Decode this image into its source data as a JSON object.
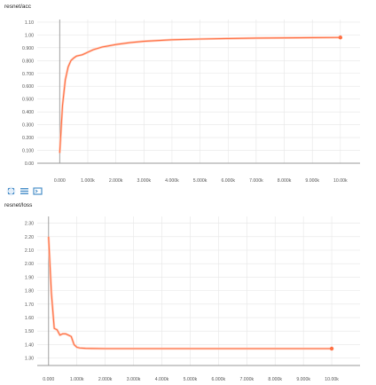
{
  "colors": {
    "series": "#ff7043",
    "series_smooth_bg": "#ffccbc",
    "grid": "#e6e6e6",
    "axis": "#999999",
    "tick_text": "#555555",
    "toolbar_icon": "#4a8fc9"
  },
  "toolbar": {
    "icons": [
      "fit-domain-icon",
      "toggle-y-log-icon",
      "expand-chart-icon"
    ]
  },
  "chart_data": [
    {
      "type": "line",
      "title": "resnet/acc",
      "xlabel": "",
      "ylabel": "",
      "xlim": [
        -800,
        10700
      ],
      "ylim": [
        0,
        1.12
      ],
      "x_ticks": [
        0,
        1000,
        2000,
        3000,
        4000,
        5000,
        6000,
        7000,
        8000,
        9000,
        10000
      ],
      "x_tick_labels": [
        "0.000",
        "1.000k",
        "2.000k",
        "3.000k",
        "4.000k",
        "5.000k",
        "6.000k",
        "7.000k",
        "8.000k",
        "9.000k",
        "10.00k"
      ],
      "y_ticks": [
        0,
        0.1,
        0.2,
        0.3,
        0.4,
        0.5,
        0.6,
        0.7,
        0.8,
        0.9,
        1.0,
        1.1
      ],
      "y_tick_labels": [
        "0.00",
        "0.100",
        "0.200",
        "0.300",
        "0.400",
        "0.500",
        "0.600",
        "0.700",
        "0.800",
        "0.900",
        "1.00",
        "1.10"
      ],
      "grid": true,
      "series": [
        {
          "x": [
            0,
            100,
            200,
            300,
            400,
            500,
            600,
            700,
            800,
            900,
            1000,
            1200,
            1500,
            2000,
            2500,
            3000,
            4000,
            5000,
            6000,
            7000,
            8000,
            9000,
            10000
          ],
          "values": [
            0.08,
            0.45,
            0.65,
            0.75,
            0.8,
            0.82,
            0.835,
            0.84,
            0.845,
            0.855,
            0.865,
            0.885,
            0.905,
            0.925,
            0.94,
            0.95,
            0.962,
            0.968,
            0.972,
            0.975,
            0.977,
            0.979,
            0.98
          ]
        }
      ]
    },
    {
      "type": "line",
      "title": "resnet/loss",
      "xlabel": "",
      "ylabel": "",
      "xlim": [
        -400,
        11000
      ],
      "ylim": [
        1.245,
        2.35
      ],
      "x_ticks": [
        0,
        1000,
        2000,
        3000,
        4000,
        5000,
        6000,
        7000,
        8000,
        9000,
        10000
      ],
      "x_tick_labels": [
        "0.000",
        "1.000k",
        "2.000k",
        "3.000k",
        "4.000k",
        "5.000k",
        "6.000k",
        "7.000k",
        "8.000k",
        "9.000k",
        "10.00k"
      ],
      "y_ticks": [
        1.3,
        1.4,
        1.5,
        1.6,
        1.7,
        1.8,
        1.9,
        2.0,
        2.1,
        2.2,
        2.3
      ],
      "y_tick_labels": [
        "1.30",
        "1.40",
        "1.50",
        "1.60",
        "1.70",
        "1.80",
        "1.90",
        "2.00",
        "2.10",
        "2.20",
        "2.30"
      ],
      "grid": true,
      "series": [
        {
          "x": [
            0,
            100,
            200,
            300,
            400,
            500,
            600,
            700,
            800,
            900,
            1000,
            1100,
            1300,
            1500,
            2000,
            3000,
            4000,
            5000,
            6000,
            7000,
            8000,
            9000,
            10000
          ],
          "values": [
            2.2,
            1.78,
            1.52,
            1.51,
            1.47,
            1.48,
            1.48,
            1.47,
            1.46,
            1.4,
            1.38,
            1.375,
            1.372,
            1.371,
            1.37,
            1.37,
            1.37,
            1.37,
            1.37,
            1.37,
            1.37,
            1.37,
            1.37
          ]
        }
      ]
    }
  ]
}
